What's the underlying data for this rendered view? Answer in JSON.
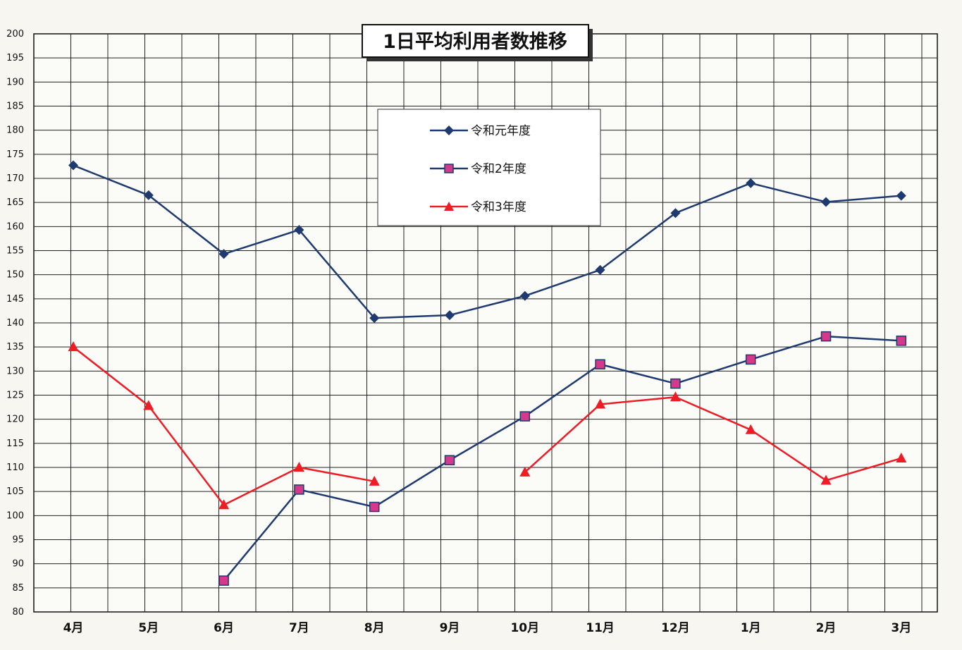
{
  "chart_data": {
    "type": "line",
    "title": "1日平均利用者数推移",
    "categories": [
      "4月",
      "5月",
      "6月",
      "7月",
      "8月",
      "9月",
      "10月",
      "11月",
      "12月",
      "1月",
      "2月",
      "3月"
    ],
    "ylim": [
      80,
      200
    ],
    "ytick_step": 5,
    "grid": true,
    "legend_position": "top-center",
    "series": [
      {
        "name": "令和元年度",
        "marker": "diamond",
        "color": "#1f3a6e",
        "values": [
          172.7,
          166.5,
          154.3,
          159.3,
          141.0,
          141.6,
          145.6,
          151.0,
          162.8,
          169.0,
          165.1,
          166.4
        ]
      },
      {
        "name": "令和2年度",
        "marker": "square",
        "color": "#1f3a6e",
        "marker_color": "#d6388a",
        "values": [
          null,
          null,
          86.5,
          105.4,
          101.8,
          111.5,
          120.6,
          131.4,
          127.4,
          132.4,
          137.2,
          136.3
        ]
      },
      {
        "name": "令和3年度",
        "marker": "triangle",
        "color": "#ee1c25",
        "values": [
          135.0,
          122.8,
          102.2,
          110.0,
          107.1,
          null,
          109.0,
          123.1,
          124.6,
          117.8,
          107.3,
          111.9
        ]
      }
    ]
  }
}
